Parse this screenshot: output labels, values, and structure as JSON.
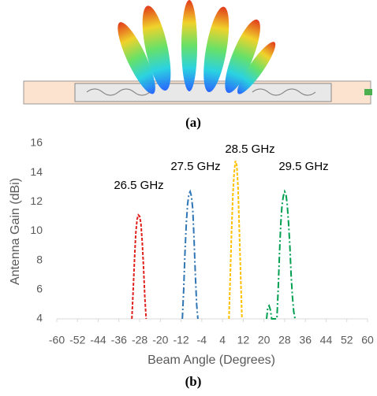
{
  "figure": {
    "caption_a": "(a)",
    "caption_b": "(b)"
  },
  "chart_data": {
    "type": "line",
    "x_label": "Beam Angle (Degrees)",
    "y_label": "Antenna Gain (dBi)",
    "xlim": [
      -60,
      60
    ],
    "xticks": [
      -60,
      -52,
      -44,
      -36,
      -28,
      -20,
      -12,
      -4,
      4,
      12,
      20,
      28,
      36,
      44,
      52,
      60
    ],
    "ylim": [
      4,
      16
    ],
    "yticks": [
      4,
      6,
      8,
      10,
      12,
      14,
      16
    ],
    "grid": false,
    "series": [
      {
        "name": "26.5 GHz",
        "color": "#e0201b",
        "dash": "dashed",
        "x": [
          -31,
          -30.5,
          -30,
          -29.5,
          -29,
          -28.5,
          -28,
          -27.5,
          -27,
          -26.5,
          -26,
          -25.5
        ],
        "values": [
          4,
          6,
          8,
          9.8,
          10.8,
          11.1,
          11,
          10.5,
          9.2,
          7.5,
          5.5,
          4
        ]
      },
      {
        "name": "27.5 GHz",
        "color": "#2e75b6",
        "dash": "dashdot",
        "x": [
          -11.5,
          -11,
          -10.5,
          -10,
          -9.5,
          -9,
          -8.5,
          -8,
          -7.5,
          -7,
          -6.5,
          -6,
          -5.5
        ],
        "values": [
          4,
          6,
          8.5,
          10.5,
          11.8,
          12.5,
          12.7,
          12.4,
          11.5,
          9.5,
          7,
          5,
          4
        ]
      },
      {
        "name": "28.5 GHz",
        "color": "#ffc000",
        "dash": "dashed",
        "x": [
          6.5,
          7,
          7.5,
          8,
          8.5,
          9,
          9.5,
          10,
          10.5,
          11,
          11.5
        ],
        "values": [
          4,
          7,
          10,
          12.5,
          14,
          14.8,
          14.5,
          13,
          10,
          7,
          4
        ]
      },
      {
        "name": "29.5 GHz",
        "color": "#00a050",
        "dash": "dashdot",
        "x": [
          21,
          21.5,
          22,
          22.5,
          23,
          25,
          25.5,
          26,
          26.5,
          27,
          27.5,
          28,
          28.5,
          29,
          29.5,
          30,
          30.5,
          31,
          31.5,
          32
        ],
        "values": [
          4,
          4.8,
          4.9,
          4.6,
          4,
          4,
          6,
          8.5,
          10.5,
          11.8,
          12.4,
          12.7,
          12.5,
          11.8,
          10.5,
          9,
          7,
          5.5,
          4.5,
          4
        ]
      }
    ]
  }
}
